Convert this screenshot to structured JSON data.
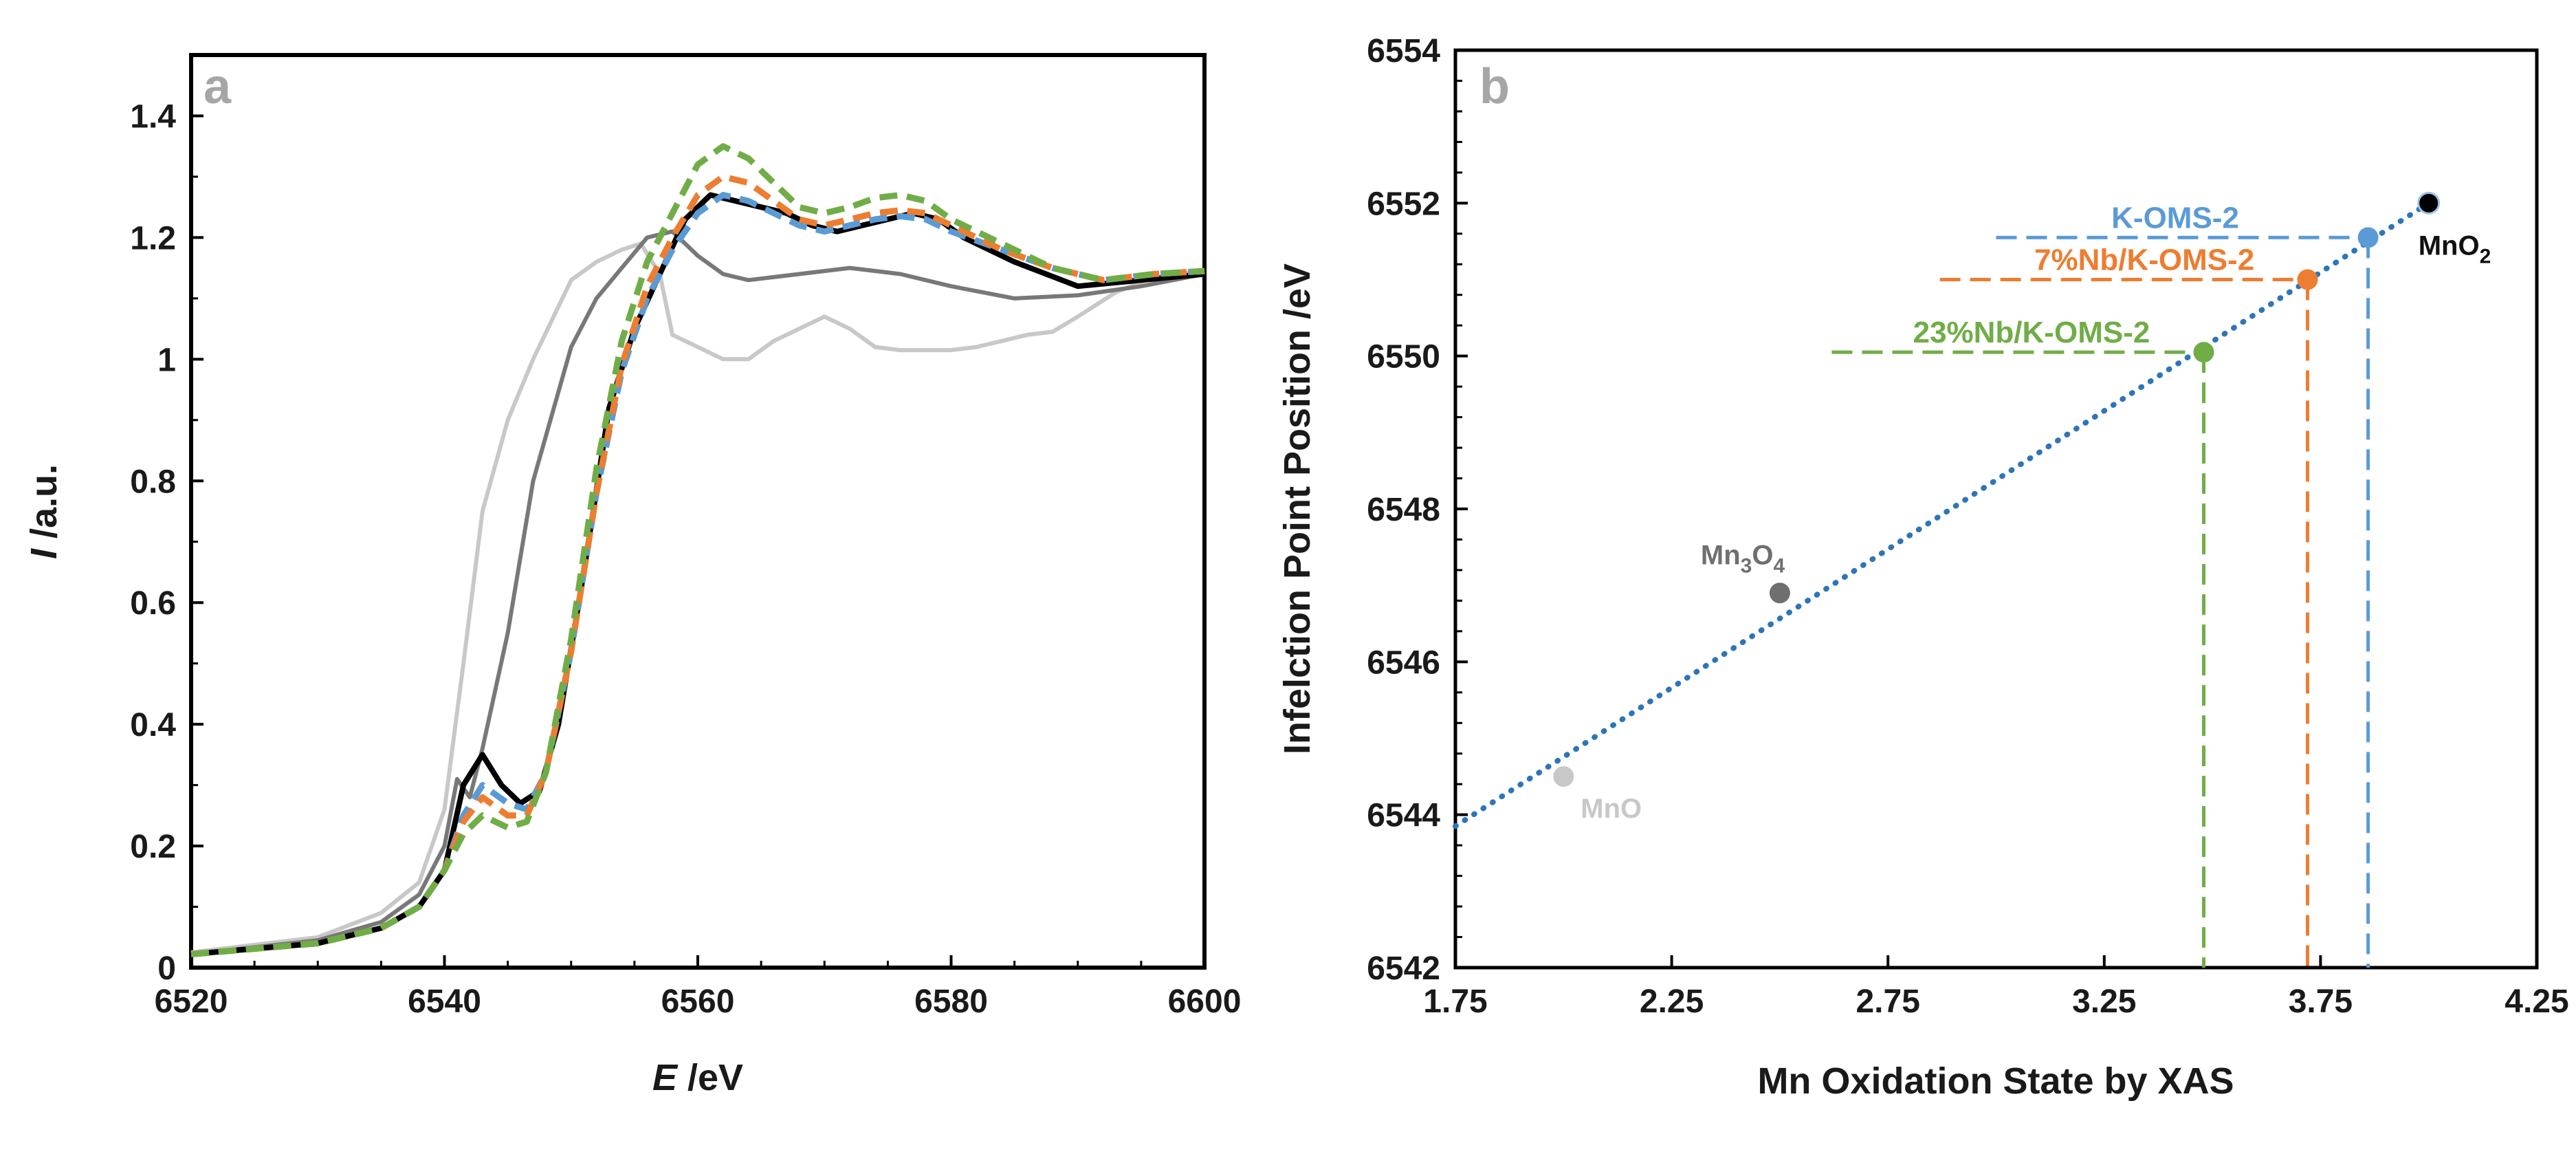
{
  "chart_data": [
    {
      "panel": "a",
      "type": "line",
      "xlabel_italic": "E",
      "xlabel_rest": " /eV",
      "ylabel_italic": "I",
      "ylabel_rest": " /a.u.",
      "xlim": [
        6520,
        6600
      ],
      "ylim": [
        0,
        1.5
      ],
      "xticks": [
        "6520",
        "6540",
        "6560",
        "6580",
        "6600"
      ],
      "yticks": [
        "0",
        "0.2",
        "0.4",
        "0.6",
        "0.8",
        "1",
        "1.2",
        "1.4"
      ],
      "ytick_values": [
        0,
        0.2,
        0.4,
        0.6,
        0.8,
        1,
        1.2,
        1.4
      ],
      "xtick_values": [
        6520,
        6540,
        6560,
        6580,
        6600
      ],
      "series": [
        {
          "name": "MnO",
          "color": "#c8c8c8",
          "dash": "solid",
          "x": [
            6520,
            6530,
            6535,
            6538,
            6540,
            6541.5,
            6543,
            6545,
            6547,
            6550,
            6552,
            6554,
            6555.5,
            6557,
            6558,
            6560,
            6562,
            6564,
            6566,
            6568,
            6570,
            6572,
            6574,
            6576,
            6580,
            6582,
            6584,
            6586,
            6588,
            6590,
            6593,
            6596,
            6600
          ],
          "y": [
            0.025,
            0.05,
            0.09,
            0.14,
            0.26,
            0.5,
            0.75,
            0.9,
            1.0,
            1.13,
            1.16,
            1.18,
            1.19,
            1.14,
            1.04,
            1.02,
            1.0,
            1.0,
            1.03,
            1.05,
            1.07,
            1.05,
            1.02,
            1.015,
            1.015,
            1.02,
            1.03,
            1.04,
            1.045,
            1.07,
            1.11,
            1.135,
            1.145
          ]
        },
        {
          "name": "Mn3O4",
          "color": "#787878",
          "dash": "solid",
          "x": [
            6520,
            6530,
            6535,
            6538,
            6540,
            6541,
            6542,
            6543,
            6545,
            6547,
            6550,
            6552,
            6554,
            6556,
            6558,
            6560,
            6562,
            6564,
            6568,
            6572,
            6576,
            6580,
            6585,
            6590,
            6595,
            6600
          ],
          "y": [
            0.022,
            0.045,
            0.075,
            0.12,
            0.2,
            0.31,
            0.28,
            0.36,
            0.55,
            0.8,
            1.02,
            1.1,
            1.15,
            1.2,
            1.21,
            1.17,
            1.14,
            1.13,
            1.14,
            1.15,
            1.14,
            1.12,
            1.1,
            1.105,
            1.12,
            1.14
          ]
        },
        {
          "name": "MnO2",
          "color": "#000000",
          "dash": "solid",
          "x": [
            6520,
            6530,
            6535,
            6538,
            6540,
            6541.5,
            6543,
            6544.5,
            6546,
            6547.5,
            6549,
            6551,
            6553,
            6555,
            6557,
            6559,
            6561,
            6563,
            6565,
            6567,
            6569,
            6571,
            6573,
            6575,
            6577,
            6579,
            6581,
            6585,
            6590,
            6595,
            6600
          ],
          "y": [
            0.022,
            0.04,
            0.065,
            0.1,
            0.16,
            0.3,
            0.35,
            0.3,
            0.27,
            0.29,
            0.4,
            0.65,
            0.92,
            1.05,
            1.14,
            1.23,
            1.27,
            1.26,
            1.25,
            1.24,
            1.22,
            1.21,
            1.22,
            1.23,
            1.24,
            1.23,
            1.2,
            1.16,
            1.12,
            1.13,
            1.14
          ]
        },
        {
          "name": "K-OMS-2",
          "color": "#5b9bd5",
          "dash": "dashed",
          "x": [
            6520,
            6530,
            6535,
            6538,
            6540,
            6541.5,
            6543,
            6545,
            6546.5,
            6548,
            6550,
            6552,
            6554,
            6556,
            6558,
            6560,
            6562,
            6564,
            6566,
            6568,
            6570,
            6572,
            6574,
            6576,
            6578,
            6580,
            6584,
            6588,
            6592,
            6596,
            6600
          ],
          "y": [
            0.022,
            0.04,
            0.065,
            0.1,
            0.16,
            0.25,
            0.3,
            0.27,
            0.26,
            0.32,
            0.52,
            0.78,
            0.98,
            1.1,
            1.18,
            1.24,
            1.27,
            1.26,
            1.24,
            1.22,
            1.21,
            1.22,
            1.23,
            1.235,
            1.23,
            1.21,
            1.18,
            1.15,
            1.13,
            1.14,
            1.145
          ]
        },
        {
          "name": "7%Nb/K-OMS-2",
          "color": "#ed7d31",
          "dash": "dashed",
          "x": [
            6520,
            6530,
            6535,
            6538,
            6540,
            6541.5,
            6543,
            6545,
            6546.5,
            6548,
            6550,
            6552,
            6554,
            6556,
            6558,
            6560,
            6562,
            6564,
            6566,
            6568,
            6570,
            6572,
            6574,
            6576,
            6578,
            6580,
            6584,
            6588,
            6592,
            6596,
            6600
          ],
          "y": [
            0.022,
            0.04,
            0.065,
            0.1,
            0.16,
            0.24,
            0.28,
            0.25,
            0.25,
            0.32,
            0.52,
            0.78,
            0.99,
            1.12,
            1.2,
            1.27,
            1.3,
            1.29,
            1.26,
            1.23,
            1.22,
            1.23,
            1.24,
            1.245,
            1.24,
            1.22,
            1.18,
            1.15,
            1.13,
            1.14,
            1.145
          ]
        },
        {
          "name": "23%Nb/K-OMS-2",
          "color": "#70ad47",
          "dash": "dashed",
          "x": [
            6520,
            6530,
            6535,
            6538,
            6540,
            6541.5,
            6543,
            6545,
            6546.5,
            6548,
            6550,
            6552,
            6554,
            6556,
            6558,
            6560,
            6562,
            6564,
            6566,
            6568,
            6570,
            6572,
            6574,
            6576,
            6578,
            6580,
            6584,
            6588,
            6592,
            6596,
            6600
          ],
          "y": [
            0.022,
            0.04,
            0.065,
            0.1,
            0.16,
            0.22,
            0.25,
            0.23,
            0.24,
            0.32,
            0.54,
            0.82,
            1.03,
            1.16,
            1.24,
            1.32,
            1.35,
            1.33,
            1.29,
            1.25,
            1.24,
            1.25,
            1.265,
            1.27,
            1.26,
            1.23,
            1.19,
            1.15,
            1.13,
            1.14,
            1.145
          ]
        }
      ]
    },
    {
      "panel": "b",
      "type": "scatter",
      "xlabel": "Mn Oxidation State by XAS",
      "ylabel": "Infelction Point Position /eV",
      "xlim": [
        1.75,
        4.25
      ],
      "ylim": [
        6542,
        6554
      ],
      "xticks": [
        "1.75",
        "2.25",
        "2.75",
        "3.25",
        "3.75",
        "4.25"
      ],
      "xtick_values": [
        1.75,
        2.25,
        2.75,
        3.25,
        3.75,
        4.25
      ],
      "yticks": [
        "6542",
        "6544",
        "6546",
        "6548",
        "6550",
        "6552",
        "6554"
      ],
      "ytick_values": [
        6542,
        6544,
        6546,
        6548,
        6550,
        6552,
        6554
      ],
      "trendline": {
        "x": [
          1.75,
          4.0
        ],
        "y": [
          6543.85,
          6552.0
        ],
        "color": "#2e75b6",
        "style": "dotted"
      },
      "points": [
        {
          "name": "MnO",
          "x": 2.0,
          "y": 6544.5,
          "color": "#c8c8c8",
          "label": "MnO"
        },
        {
          "name": "Mn3O4",
          "x": 2.5,
          "y": 6546.9,
          "color": "#6f6f6f",
          "label_base": "Mn",
          "label_sub1": "3",
          "label_mid": "O",
          "label_sub2": "4"
        },
        {
          "name": "MnO2",
          "x": 4.0,
          "y": 6552.0,
          "color": "#000000",
          "label_base": "MnO",
          "label_sub1": "2"
        },
        {
          "name": "K-OMS-2",
          "x": 3.86,
          "y": 6551.55,
          "color": "#5b9bd5",
          "label": "K-OMS-2",
          "hline_from_x": 3.0
        },
        {
          "name": "7%Nb/K-OMS-2",
          "x": 3.72,
          "y": 6551.0,
          "color": "#ed7d31",
          "label": "7%Nb/K-OMS-2",
          "hline_from_x": 2.87
        },
        {
          "name": "23%Nb/K-OMS-2",
          "x": 3.48,
          "y": 6550.05,
          "color": "#70ad47",
          "label": "23%Nb/K-OMS-2",
          "hline_from_x": 2.62
        }
      ]
    }
  ]
}
